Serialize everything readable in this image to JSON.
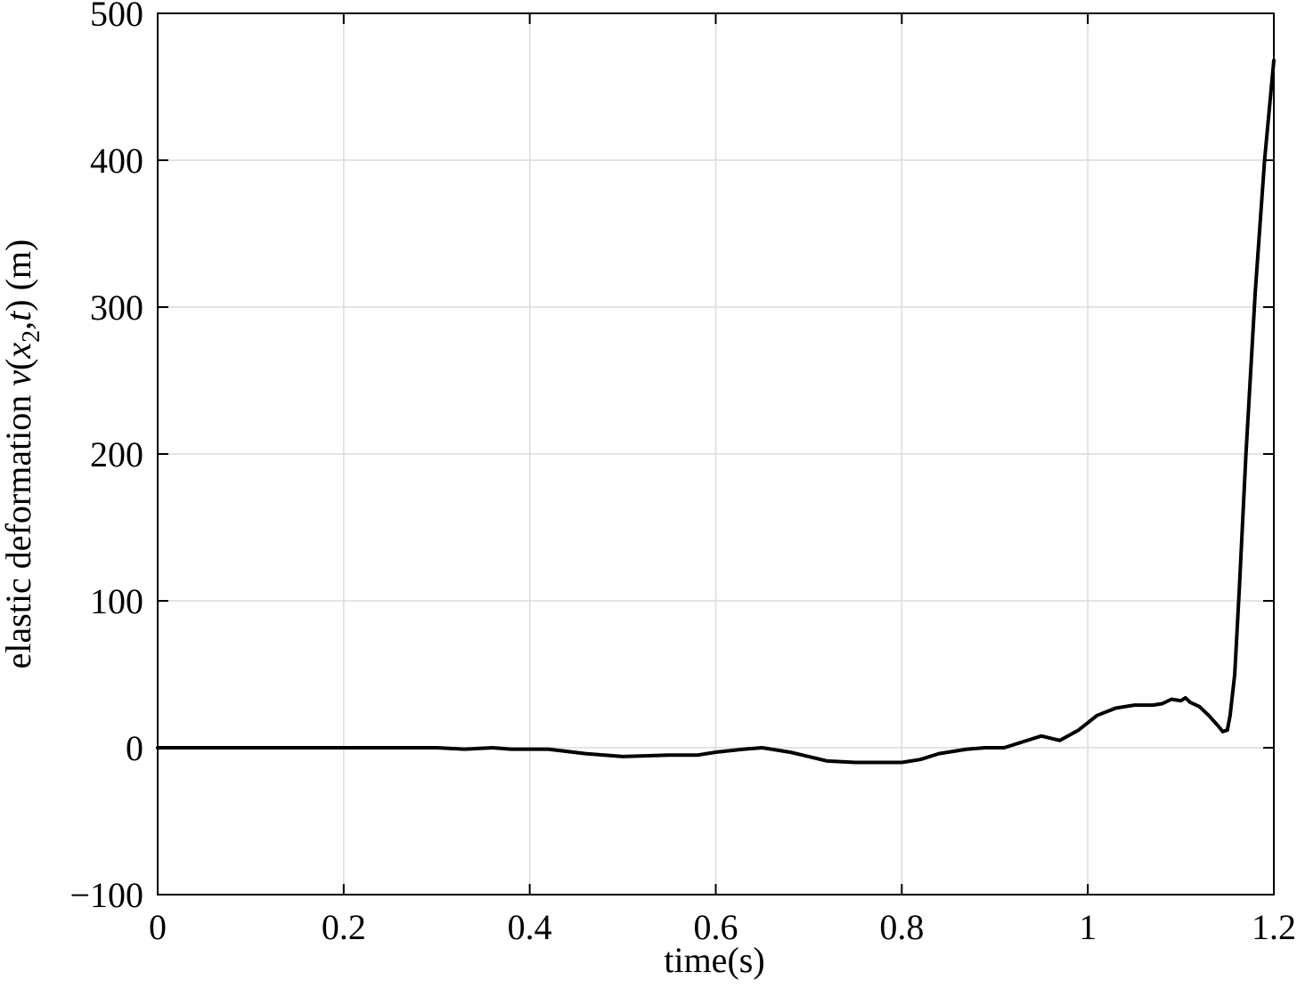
{
  "chart_data": {
    "type": "line",
    "xlabel": "time(s)",
    "ylabel": {
      "prefix": "elastic deformation ",
      "var_v": "v",
      "open": "(",
      "var_x": "x",
      "sub": "2",
      "comma": ",",
      "var_t": "t",
      "close": ")",
      "unit": " (m)"
    },
    "xlim": [
      0,
      1.2
    ],
    "ylim": [
      -100,
      500
    ],
    "xticks": [
      0,
      0.2,
      0.4,
      0.6,
      0.8,
      1.0,
      1.2
    ],
    "xtick_labels": [
      "0",
      "0.2",
      "0.4",
      "0.6",
      "0.8",
      "1",
      "1.2"
    ],
    "yticks": [
      -100,
      0,
      100,
      200,
      300,
      400,
      500
    ],
    "ytick_labels": [
      "−100",
      "0",
      "100",
      "200",
      "300",
      "400",
      "500"
    ],
    "grid": true,
    "line_color": "#000000",
    "series": [
      {
        "x": [
          0,
          0.05,
          0.1,
          0.15,
          0.2,
          0.25,
          0.3,
          0.33,
          0.36,
          0.38,
          0.42,
          0.46,
          0.5,
          0.55,
          0.58,
          0.6,
          0.63,
          0.65,
          0.68,
          0.7,
          0.72,
          0.75,
          0.78,
          0.8,
          0.82,
          0.84,
          0.87,
          0.89,
          0.91,
          0.93,
          0.95,
          0.97,
          0.99,
          1.01,
          1.03,
          1.05,
          1.07,
          1.08,
          1.09,
          1.1,
          1.105,
          1.11,
          1.12,
          1.13,
          1.14,
          1.145,
          1.15,
          1.153,
          1.158,
          1.163,
          1.17,
          1.18,
          1.19,
          1.2
        ],
        "y": [
          0,
          0,
          0,
          0,
          0,
          0,
          0,
          -1,
          0,
          -1,
          -1,
          -4,
          -6,
          -5,
          -5,
          -3,
          -1,
          0,
          -3,
          -6,
          -9,
          -10,
          -10,
          -10,
          -8,
          -4,
          -1,
          0,
          0,
          4,
          8,
          5,
          12,
          22,
          27,
          29,
          29,
          30,
          33,
          32,
          34,
          31,
          28,
          22,
          15,
          11,
          12,
          22,
          50,
          110,
          200,
          310,
          400,
          468
        ]
      }
    ]
  }
}
